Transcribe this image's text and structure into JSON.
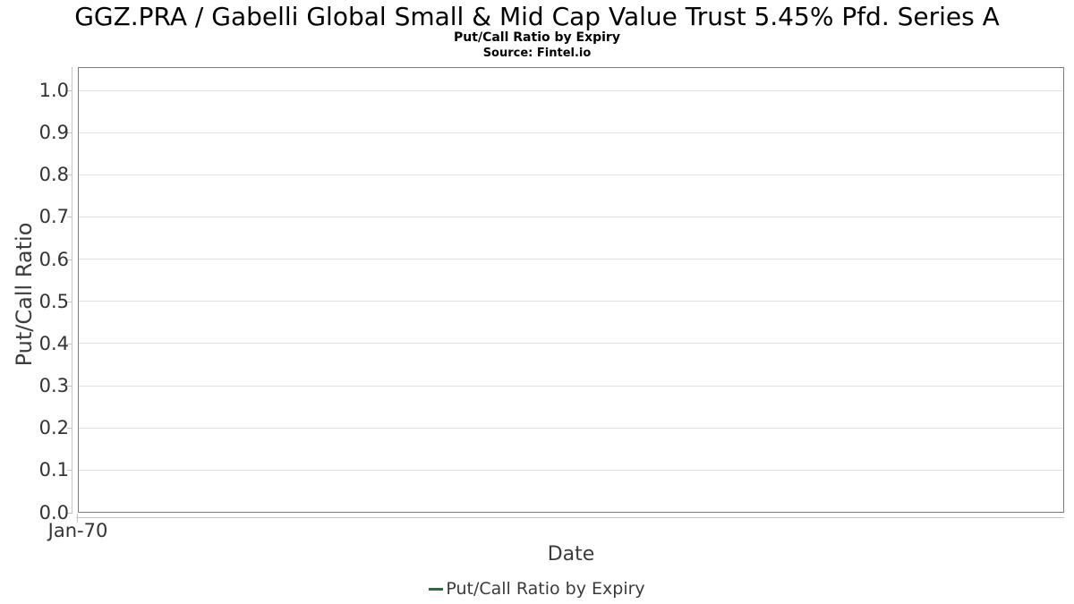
{
  "chart_data": {
    "type": "line",
    "title": "GGZ.PRA / Gabelli Global Small & Mid Cap Value Trust 5.45% Pfd. Series A",
    "subtitle": "Put/Call Ratio by Expiry",
    "source": "Source: Fintel.io",
    "xlabel": "Date",
    "ylabel": "Put/Call Ratio",
    "ylim": [
      0.0,
      1.05
    ],
    "grid": true,
    "legend_position": "bottom",
    "yticks": [
      {
        "label": "0.0",
        "value": 0.0
      },
      {
        "label": "0.1",
        "value": 0.1
      },
      {
        "label": "0.2",
        "value": 0.2
      },
      {
        "label": "0.3",
        "value": 0.3
      },
      {
        "label": "0.4",
        "value": 0.4
      },
      {
        "label": "0.5",
        "value": 0.5
      },
      {
        "label": "0.6",
        "value": 0.6
      },
      {
        "label": "0.7",
        "value": 0.7
      },
      {
        "label": "0.8",
        "value": 0.8
      },
      {
        "label": "0.9",
        "value": 0.9
      },
      {
        "label": "1.0",
        "value": 1.0
      }
    ],
    "xticks": [
      {
        "label": "Jan-70",
        "pos": 0.0
      }
    ],
    "series": [
      {
        "name": "Put/Call Ratio by Expiry",
        "color": "#2d6b3a",
        "x": [],
        "values": []
      }
    ]
  },
  "colors": {
    "series_green": "#2d6b3a",
    "plot_border": "#7a7a7a",
    "gridline": "#e2e2e2",
    "axis_line": "#c4c4c4",
    "tick_label": "#333333",
    "axis_title": "#3c3c3c",
    "legend_text": "#3a3a3a",
    "title_text": "#000000",
    "background": "#ffffff"
  }
}
